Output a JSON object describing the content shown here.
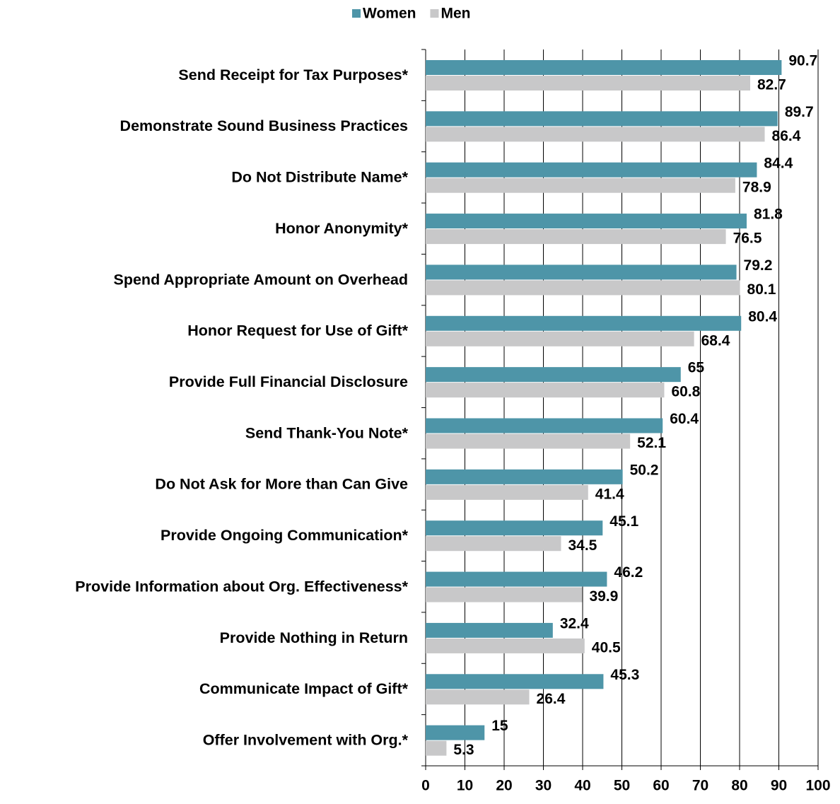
{
  "chart_data": {
    "type": "bar",
    "orientation": "horizontal",
    "categories": [
      "Send Receipt for Tax Purposes*",
      "Demonstrate Sound Business Practices",
      "Do Not Distribute Name*",
      "Honor Anonymity*",
      "Spend Appropriate Amount on Overhead",
      "Honor Request for Use of Gift*",
      "Provide Full Financial Disclosure",
      "Send Thank-You Note*",
      "Do Not Ask for More than Can Give",
      "Provide Ongoing Communication*",
      "Provide Information about Org. Effectiveness*",
      "Provide Nothing in Return",
      "Communicate Impact of Gift*",
      "Offer Involvement with Org.*"
    ],
    "series": [
      {
        "name": "Women",
        "color": "#4e95a8",
        "values": [
          90.7,
          89.7,
          84.4,
          81.8,
          79.2,
          80.4,
          65,
          60.4,
          50.2,
          45.1,
          46.2,
          32.4,
          45.3,
          15
        ]
      },
      {
        "name": "Men",
        "color": "#c8c8c9",
        "values": [
          82.7,
          86.4,
          78.9,
          76.5,
          80.1,
          68.4,
          60.8,
          52.1,
          41.4,
          34.5,
          39.9,
          40.5,
          26.4,
          5.3
        ]
      }
    ],
    "xlim": [
      0,
      100
    ],
    "xticks": [
      0,
      10,
      20,
      30,
      40,
      50,
      60,
      70,
      80,
      90,
      100
    ],
    "grid": true,
    "legend": "top"
  }
}
